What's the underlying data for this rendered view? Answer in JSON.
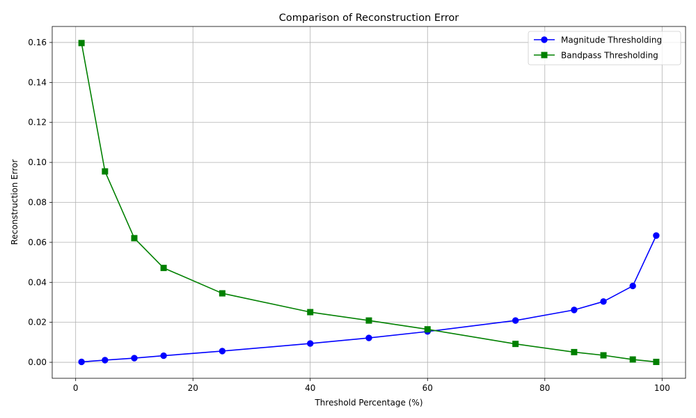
{
  "chart_data": {
    "type": "line",
    "title": "Comparison of Reconstruction Error",
    "xlabel": "Threshold Percentage (%)",
    "ylabel": "Reconstruction Error",
    "xlim": [
      -4,
      104
    ],
    "ylim": [
      -0.008,
      0.168
    ],
    "xticks": [
      0,
      20,
      40,
      60,
      80,
      100
    ],
    "xtick_labels": [
      "0",
      "20",
      "40",
      "60",
      "80",
      "100"
    ],
    "yticks": [
      0.0,
      0.02,
      0.04,
      0.06,
      0.08,
      0.1,
      0.12,
      0.14,
      0.16
    ],
    "ytick_labels": [
      "0.00",
      "0.02",
      "0.04",
      "0.06",
      "0.08",
      "0.10",
      "0.12",
      "0.14",
      "0.16"
    ],
    "grid": true,
    "legend_position": "top-right",
    "series": [
      {
        "name": "Magnitude Thresholding",
        "color": "#0000ff",
        "marker": "circle",
        "x": [
          1,
          5,
          10,
          15,
          25,
          40,
          50,
          60,
          75,
          85,
          90,
          95,
          99
        ],
        "y": [
          0.0002,
          0.0011,
          0.0021,
          0.0033,
          0.0056,
          0.0094,
          0.0122,
          0.0154,
          0.0209,
          0.0262,
          0.0304,
          0.0382,
          0.0634
        ]
      },
      {
        "name": "Bandpass Thresholding",
        "color": "#008000",
        "marker": "square",
        "x": [
          1,
          5,
          10,
          15,
          25,
          40,
          50,
          60,
          75,
          85,
          90,
          95,
          99
        ],
        "y": [
          0.1597,
          0.0955,
          0.0621,
          0.0472,
          0.0345,
          0.0251,
          0.0209,
          0.0165,
          0.0092,
          0.0051,
          0.0035,
          0.0014,
          0.0002
        ]
      }
    ]
  }
}
